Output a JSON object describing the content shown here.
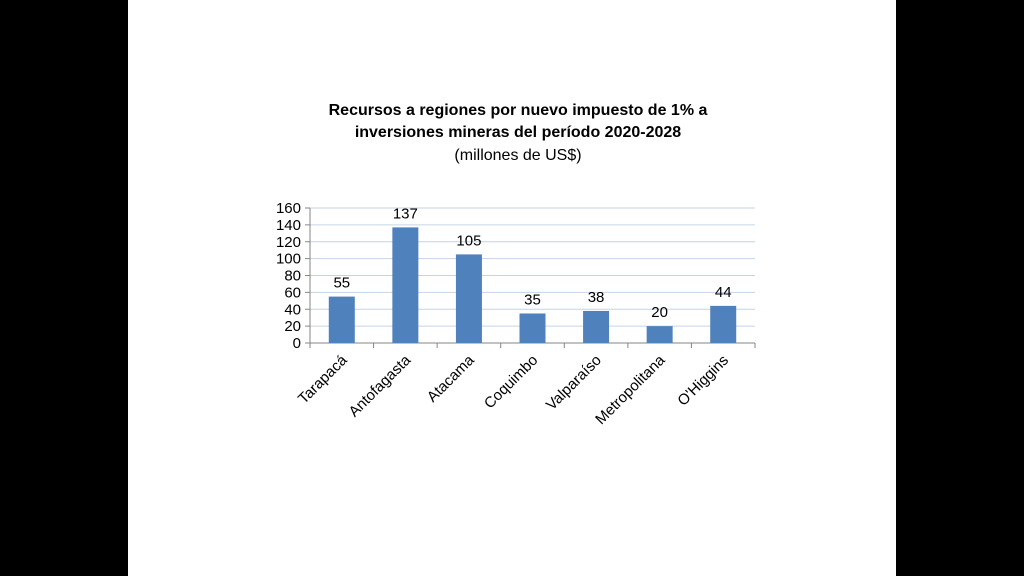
{
  "slide": {
    "background": "#ffffff",
    "frame": "#000000"
  },
  "chart_data": {
    "type": "bar",
    "title_line1": "Recursos a regiones por nuevo impuesto de 1% a",
    "title_line2": "inversiones mineras del período 2020-2028",
    "subtitle": "(millones de US$)",
    "categories": [
      "Tarapacá",
      "Antofagasta",
      "Atacama",
      "Coquimbo",
      "Valparaíso",
      "Metropolitana",
      "O'Higgins"
    ],
    "values": [
      55,
      137,
      105,
      35,
      38,
      20,
      44
    ],
    "ylim": [
      0,
      160
    ],
    "yticks": [
      "0",
      "20",
      "40",
      "60",
      "80",
      "100",
      "120",
      "140",
      "160"
    ],
    "grid": true,
    "legend": "none",
    "bar_color": "#4f81bd",
    "grid_color": "#c6d3e6"
  }
}
